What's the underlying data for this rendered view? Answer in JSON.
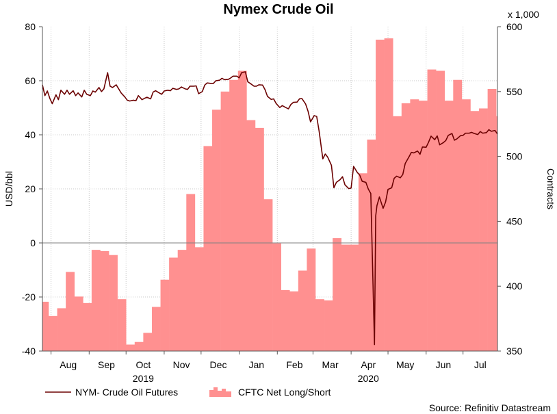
{
  "chart_data": {
    "type": "area+line",
    "title": "Nymex Crude Oil",
    "source": "Source: Refinitiv Datastream",
    "y_left": {
      "label": "USD/bbl",
      "ylim": [
        -40,
        80
      ],
      "ticks": [
        -40,
        -20,
        0,
        20,
        40,
        60,
        80
      ]
    },
    "y_right": {
      "label": "Contracts",
      "multiplier": "x 1,000",
      "ylim": [
        350,
        600
      ],
      "ticks": [
        350,
        400,
        450,
        500,
        550,
        600
      ]
    },
    "x": {
      "start": "2019-07-25",
      "end": "2020-07-29",
      "months": [
        {
          "label": "Aug",
          "date": "2019-08-15"
        },
        {
          "label": "Sep",
          "date": "2019-09-15"
        },
        {
          "label": "Oct",
          "date": "2019-10-15"
        },
        {
          "label": "Nov",
          "date": "2019-11-15"
        },
        {
          "label": "Dec",
          "date": "2019-12-15"
        },
        {
          "label": "Jan",
          "date": "2020-01-15"
        },
        {
          "label": "Feb",
          "date": "2020-02-15"
        },
        {
          "label": "Mar",
          "date": "2020-03-15"
        },
        {
          "label": "Apr",
          "date": "2020-04-15"
        },
        {
          "label": "May",
          "date": "2020-05-15"
        },
        {
          "label": "Jun",
          "date": "2020-06-15"
        },
        {
          "label": "Jul",
          "date": "2020-07-15"
        }
      ],
      "month_boundaries": [
        "2019-08-01",
        "2019-09-01",
        "2019-10-01",
        "2019-11-01",
        "2019-12-01",
        "2020-01-01",
        "2020-02-01",
        "2020-03-01",
        "2020-04-01",
        "2020-05-01",
        "2020-06-01",
        "2020-07-01"
      ],
      "years": [
        {
          "label": "2019",
          "date": "2019-10-15"
        },
        {
          "label": "2020",
          "date": "2020-04-15"
        }
      ]
    },
    "series": [
      {
        "name": "NYM- Crude Oil Futures",
        "axis": "left",
        "kind": "line",
        "color": "#6b0000",
        "points": [
          [
            "2019-07-25",
            58.5
          ],
          [
            "2019-07-27",
            54.5
          ],
          [
            "2019-07-29",
            56.2
          ],
          [
            "2019-07-31",
            53.5
          ],
          [
            "2019-08-02",
            51.5
          ],
          [
            "2019-08-05",
            54.8
          ],
          [
            "2019-08-07",
            53.0
          ],
          [
            "2019-08-09",
            56.5
          ],
          [
            "2019-08-12",
            55.0
          ],
          [
            "2019-08-14",
            56.5
          ],
          [
            "2019-08-16",
            55.0
          ],
          [
            "2019-08-19",
            56.3
          ],
          [
            "2019-08-21",
            54.5
          ],
          [
            "2019-08-23",
            55.5
          ],
          [
            "2019-08-26",
            54.0
          ],
          [
            "2019-08-28",
            56.5
          ],
          [
            "2019-08-30",
            55.0
          ],
          [
            "2019-09-02",
            54.5
          ],
          [
            "2019-09-04",
            56.2
          ],
          [
            "2019-09-06",
            55.8
          ],
          [
            "2019-09-09",
            57.5
          ],
          [
            "2019-09-11",
            56.0
          ],
          [
            "2019-09-13",
            57.0
          ],
          [
            "2019-09-16",
            63.0
          ],
          [
            "2019-09-18",
            58.0
          ],
          [
            "2019-09-20",
            57.5
          ],
          [
            "2019-09-23",
            58.5
          ],
          [
            "2019-09-25",
            57.0
          ],
          [
            "2019-09-27",
            55.5
          ],
          [
            "2019-09-30",
            54.0
          ],
          [
            "2019-10-02",
            52.8
          ],
          [
            "2019-10-04",
            52.5
          ],
          [
            "2019-10-07",
            52.8
          ],
          [
            "2019-10-09",
            52.6
          ],
          [
            "2019-10-11",
            54.5
          ],
          [
            "2019-10-14",
            53.0
          ],
          [
            "2019-10-16",
            53.5
          ],
          [
            "2019-10-18",
            53.9
          ],
          [
            "2019-10-21",
            53.3
          ],
          [
            "2019-10-23",
            55.8
          ],
          [
            "2019-10-25",
            56.3
          ],
          [
            "2019-10-28",
            55.5
          ],
          [
            "2019-10-30",
            55.0
          ],
          [
            "2019-11-01",
            56.2
          ],
          [
            "2019-11-04",
            56.5
          ],
          [
            "2019-11-06",
            56.3
          ],
          [
            "2019-11-08",
            57.2
          ],
          [
            "2019-11-11",
            56.8
          ],
          [
            "2019-11-13",
            57.0
          ],
          [
            "2019-11-15",
            57.7
          ],
          [
            "2019-11-18",
            57.0
          ],
          [
            "2019-11-20",
            56.8
          ],
          [
            "2019-11-22",
            58.0
          ],
          [
            "2019-11-25",
            58.0
          ],
          [
            "2019-11-27",
            58.1
          ],
          [
            "2019-11-29",
            55.2
          ],
          [
            "2019-12-02",
            56.0
          ],
          [
            "2019-12-04",
            58.4
          ],
          [
            "2019-12-06",
            59.2
          ],
          [
            "2019-12-09",
            59.0
          ],
          [
            "2019-12-11",
            59.0
          ],
          [
            "2019-12-13",
            60.0
          ],
          [
            "2019-12-16",
            60.2
          ],
          [
            "2019-12-18",
            60.9
          ],
          [
            "2019-12-20",
            60.4
          ],
          [
            "2019-12-23",
            60.5
          ],
          [
            "2019-12-25",
            61.0
          ],
          [
            "2019-12-27",
            61.7
          ],
          [
            "2019-12-30",
            61.7
          ],
          [
            "2020-01-01",
            61.1
          ],
          [
            "2020-01-03",
            63.0
          ],
          [
            "2020-01-06",
            63.3
          ],
          [
            "2020-01-08",
            59.6
          ],
          [
            "2020-01-10",
            59.0
          ],
          [
            "2020-01-13",
            58.0
          ],
          [
            "2020-01-15",
            58.0
          ],
          [
            "2020-01-17",
            58.5
          ],
          [
            "2020-01-20",
            58.4
          ],
          [
            "2020-01-22",
            56.7
          ],
          [
            "2020-01-24",
            54.2
          ],
          [
            "2020-01-27",
            53.1
          ],
          [
            "2020-01-29",
            53.3
          ],
          [
            "2020-01-31",
            51.6
          ],
          [
            "2020-02-03",
            50.1
          ],
          [
            "2020-02-05",
            50.8
          ],
          [
            "2020-02-07",
            50.3
          ],
          [
            "2020-02-10",
            49.6
          ],
          [
            "2020-02-12",
            51.2
          ],
          [
            "2020-02-14",
            52.0
          ],
          [
            "2020-02-17",
            52.1
          ],
          [
            "2020-02-19",
            53.3
          ],
          [
            "2020-02-21",
            53.4
          ],
          [
            "2020-02-24",
            51.4
          ],
          [
            "2020-02-26",
            48.7
          ],
          [
            "2020-02-28",
            44.8
          ],
          [
            "2020-03-02",
            47.1
          ],
          [
            "2020-03-04",
            46.8
          ],
          [
            "2020-03-06",
            41.3
          ],
          [
            "2020-03-09",
            31.1
          ],
          [
            "2020-03-11",
            32.9
          ],
          [
            "2020-03-13",
            31.7
          ],
          [
            "2020-03-16",
            28.7
          ],
          [
            "2020-03-18",
            20.4
          ],
          [
            "2020-03-20",
            22.4
          ],
          [
            "2020-03-23",
            23.4
          ],
          [
            "2020-03-25",
            24.5
          ],
          [
            "2020-03-27",
            21.5
          ],
          [
            "2020-03-30",
            20.1
          ],
          [
            "2020-04-01",
            20.3
          ],
          [
            "2020-04-03",
            28.3
          ],
          [
            "2020-04-06",
            26.1
          ],
          [
            "2020-04-08",
            25.1
          ],
          [
            "2020-04-10",
            22.8
          ],
          [
            "2020-04-13",
            22.4
          ],
          [
            "2020-04-15",
            19.9
          ],
          [
            "2020-04-17",
            18.3
          ],
          [
            "2020-04-20",
            -37.6
          ],
          [
            "2020-04-21",
            10.0
          ],
          [
            "2020-04-22",
            13.8
          ],
          [
            "2020-04-24",
            17.0
          ],
          [
            "2020-04-27",
            12.8
          ],
          [
            "2020-04-29",
            15.1
          ],
          [
            "2020-05-01",
            19.8
          ],
          [
            "2020-05-04",
            20.4
          ],
          [
            "2020-05-06",
            23.9
          ],
          [
            "2020-05-08",
            24.7
          ],
          [
            "2020-05-11",
            24.1
          ],
          [
            "2020-05-13",
            25.3
          ],
          [
            "2020-05-15",
            29.4
          ],
          [
            "2020-05-18",
            31.8
          ],
          [
            "2020-05-20",
            33.5
          ],
          [
            "2020-05-22",
            33.3
          ],
          [
            "2020-05-25",
            34.0
          ],
          [
            "2020-05-27",
            32.8
          ],
          [
            "2020-05-29",
            35.5
          ],
          [
            "2020-06-01",
            35.4
          ],
          [
            "2020-06-03",
            37.3
          ],
          [
            "2020-06-05",
            39.5
          ],
          [
            "2020-06-08",
            38.2
          ],
          [
            "2020-06-10",
            39.6
          ],
          [
            "2020-06-12",
            36.3
          ],
          [
            "2020-06-15",
            37.1
          ],
          [
            "2020-06-17",
            37.9
          ],
          [
            "2020-06-19",
            39.8
          ],
          [
            "2020-06-22",
            40.5
          ],
          [
            "2020-06-24",
            38.0
          ],
          [
            "2020-06-26",
            38.5
          ],
          [
            "2020-06-29",
            39.7
          ],
          [
            "2020-07-01",
            39.8
          ],
          [
            "2020-07-03",
            40.6
          ],
          [
            "2020-07-06",
            40.6
          ],
          [
            "2020-07-08",
            40.9
          ],
          [
            "2020-07-10",
            40.5
          ],
          [
            "2020-07-13",
            40.1
          ],
          [
            "2020-07-15",
            41.2
          ],
          [
            "2020-07-17",
            40.6
          ],
          [
            "2020-07-20",
            40.8
          ],
          [
            "2020-07-22",
            41.9
          ],
          [
            "2020-07-24",
            41.3
          ],
          [
            "2020-07-27",
            41.6
          ],
          [
            "2020-07-29",
            40.3
          ]
        ]
      },
      {
        "name": "CFTC Net Long/Short",
        "axis": "right",
        "kind": "step-area",
        "color": "#ff9090",
        "points": [
          [
            "2019-07-23",
            388
          ],
          [
            "2019-07-30",
            377
          ],
          [
            "2019-08-06",
            383
          ],
          [
            "2019-08-13",
            411
          ],
          [
            "2019-08-20",
            392
          ],
          [
            "2019-08-27",
            387
          ],
          [
            "2019-09-03",
            428
          ],
          [
            "2019-09-10",
            427
          ],
          [
            "2019-09-17",
            424
          ],
          [
            "2019-09-24",
            390
          ],
          [
            "2019-10-01",
            355
          ],
          [
            "2019-10-08",
            357
          ],
          [
            "2019-10-15",
            364
          ],
          [
            "2019-10-22",
            384
          ],
          [
            "2019-10-29",
            405
          ],
          [
            "2019-11-05",
            422
          ],
          [
            "2019-11-12",
            428
          ],
          [
            "2019-11-19",
            471
          ],
          [
            "2019-11-26",
            430
          ],
          [
            "2019-12-03",
            508
          ],
          [
            "2019-12-10",
            536
          ],
          [
            "2019-12-17",
            550
          ],
          [
            "2019-12-24",
            559
          ],
          [
            "2019-12-31",
            566
          ],
          [
            "2020-01-07",
            528
          ],
          [
            "2020-01-14",
            522
          ],
          [
            "2020-01-21",
            467
          ],
          [
            "2020-01-28",
            433
          ],
          [
            "2020-02-04",
            397
          ],
          [
            "2020-02-11",
            396
          ],
          [
            "2020-02-18",
            412
          ],
          [
            "2020-02-25",
            429
          ],
          [
            "2020-03-03",
            390
          ],
          [
            "2020-03-10",
            389
          ],
          [
            "2020-03-17",
            437
          ],
          [
            "2020-03-24",
            432
          ],
          [
            "2020-03-31",
            432
          ],
          [
            "2020-04-07",
            487
          ],
          [
            "2020-04-14",
            513
          ],
          [
            "2020-04-21",
            590
          ],
          [
            "2020-04-28",
            591
          ],
          [
            "2020-05-05",
            531
          ],
          [
            "2020-05-12",
            541
          ],
          [
            "2020-05-19",
            544
          ],
          [
            "2020-05-26",
            543
          ],
          [
            "2020-06-02",
            567
          ],
          [
            "2020-06-09",
            566
          ],
          [
            "2020-06-16",
            543
          ],
          [
            "2020-06-23",
            559
          ],
          [
            "2020-06-30",
            544
          ],
          [
            "2020-07-07",
            535
          ],
          [
            "2020-07-14",
            537
          ],
          [
            "2020-07-21",
            552
          ],
          [
            "2020-07-28",
            531
          ]
        ]
      }
    ],
    "legend": {
      "placement": "bottom-left",
      "entries": [
        "NYM- Crude Oil Futures",
        "CFTC Net Long/Short"
      ]
    },
    "grid": true
  }
}
